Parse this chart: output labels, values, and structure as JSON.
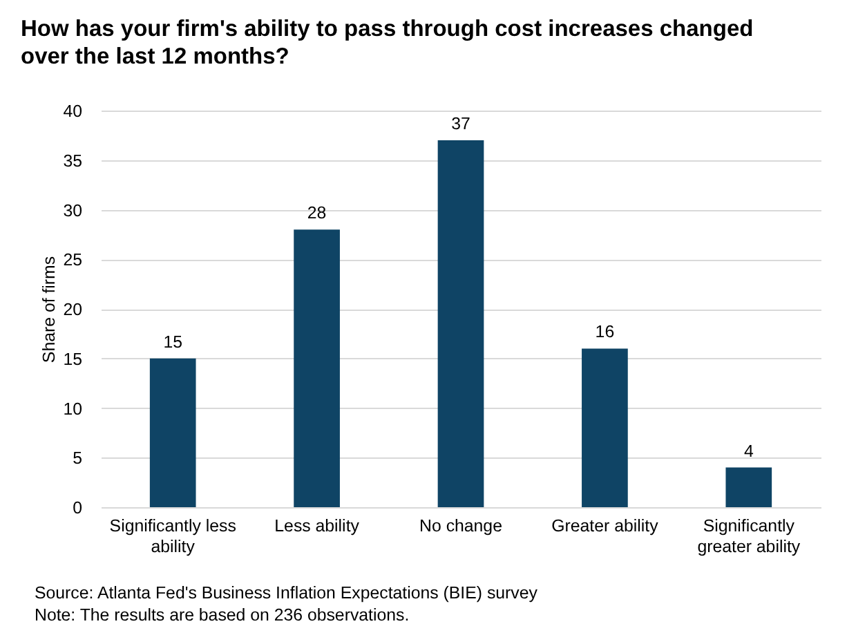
{
  "chart_data": {
    "type": "bar",
    "title": "How has your firm's ability to pass through cost increases changed over the last 12 months?",
    "ylabel": "Share of firms",
    "categories": [
      "Significantly less ability",
      "Less ability",
      "No change",
      "Greater ability",
      "Significantly greater ability"
    ],
    "values": [
      15,
      28,
      37,
      16,
      4
    ],
    "color": "#0f4465",
    "ylim": [
      0,
      40
    ],
    "yticks": [
      0,
      5,
      10,
      15,
      20,
      25,
      30,
      35,
      40
    ],
    "grid": "y",
    "data_labels": true,
    "annotations": [
      "Source: Atlanta Fed's Business Inflation Expectations (BIE) survey",
      "Note: The results are based on 236 observations."
    ]
  }
}
